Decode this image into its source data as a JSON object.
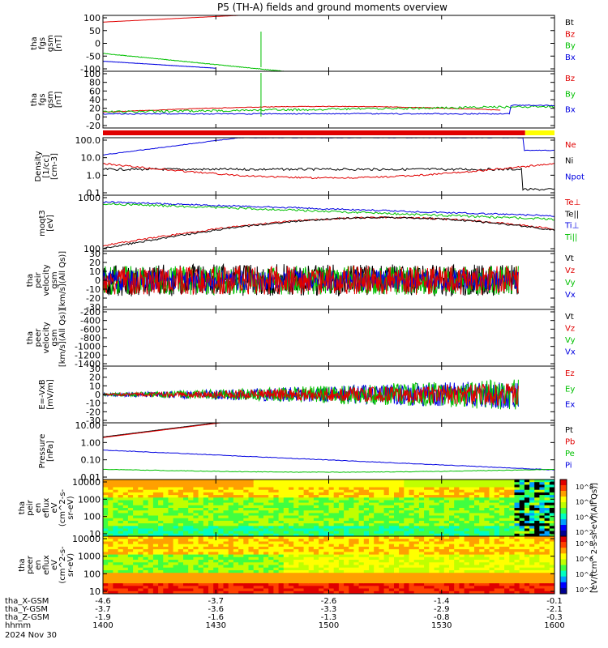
{
  "title": "P5 (TH-A) fields and ground moments overview",
  "chart_data": {
    "type": "line",
    "xlim": [
      1400,
      1600
    ],
    "x_ticks": [
      "1400",
      "1430",
      "1500",
      "1530",
      "1600"
    ],
    "footer": {
      "rows": [
        {
          "label": "tha_X-GSM",
          "values": [
            "-4.6",
            "-3.7",
            "-2.6",
            "-1.4",
            "-0.1"
          ]
        },
        {
          "label": "tha_Y-GSM",
          "values": [
            "-3.7",
            "-3.6",
            "-3.3",
            "-2.9",
            "-2.1"
          ]
        },
        {
          "label": "tha_Z-GSM",
          "values": [
            "-1.9",
            "-1.6",
            "-1.3",
            "-0.8",
            "-0.3"
          ]
        },
        {
          "label": "hhmm",
          "values": [
            "1400",
            "1430",
            "1500",
            "1530",
            "1600"
          ]
        }
      ],
      "date": "2024 Nov 30"
    },
    "panels": [
      {
        "id": "fgs_gsm",
        "ylabel": [
          "tha",
          "fgs",
          "gsm",
          "[nT]"
        ],
        "yticks": [
          "100",
          "50",
          "0",
          "-50",
          "-100"
        ],
        "legend": [
          {
            "name": "Bt",
            "color": "#000000"
          },
          {
            "name": "Bz",
            "color": "#e00000"
          },
          {
            "name": "By",
            "color": "#00c000"
          },
          {
            "name": "Bx",
            "color": "#0000e0"
          }
        ]
      },
      {
        "id": "fgs_dsl",
        "ylabel": [
          "tha",
          "fgs",
          "gsm",
          "[nT]"
        ],
        "yticks": [
          "100",
          "80",
          "60",
          "40",
          "20",
          "0",
          "-20"
        ],
        "legend": [
          {
            "name": "Bz",
            "color": "#e00000"
          },
          {
            "name": "By",
            "color": "#00c000"
          },
          {
            "name": "Bx",
            "color": "#0000e0"
          }
        ]
      },
      {
        "id": "density",
        "ylabel": [
          "Density",
          "[1/cc]",
          "[cm-3]"
        ],
        "yticks": [
          "100.0",
          "10.0",
          "1.0",
          "0.1"
        ],
        "legend": [
          {
            "name": "Ne",
            "color": "#e00000"
          },
          {
            "name": "Ni",
            "color": "#000000"
          },
          {
            "name": "Npot",
            "color": "#0000e0"
          }
        ]
      },
      {
        "id": "temperature",
        "ylabel": [
          "moqt3",
          "[eV]"
        ],
        "yticks": [
          "1000",
          "100"
        ],
        "legend": [
          {
            "name": "Te⊥",
            "color": "#e00000"
          },
          {
            "name": "Te||",
            "color": "#000000"
          },
          {
            "name": "Ti⊥",
            "color": "#0000e0"
          },
          {
            "name": "Ti||",
            "color": "#00c000"
          }
        ]
      },
      {
        "id": "peir_velocity",
        "ylabel": [
          "tha",
          "peir",
          "velocity",
          "gsm",
          "[km/s](All Qs)]"
        ],
        "yticks": [
          "30",
          "20",
          "10",
          "0",
          "-10",
          "-20",
          "-30"
        ],
        "legend": [
          {
            "name": "Vt",
            "color": "#000000"
          },
          {
            "name": "Vz",
            "color": "#e00000"
          },
          {
            "name": "Vy",
            "color": "#00c000"
          },
          {
            "name": "Vx",
            "color": "#0000e0"
          }
        ]
      },
      {
        "id": "peer_velocity",
        "ylabel": [
          "tha",
          "peer",
          "velocity",
          "gsm",
          "[km/s](All Qs)]"
        ],
        "yticks": [
          "-200",
          "-400",
          "-600",
          "-800",
          "-1000",
          "-1200",
          "-1400"
        ],
        "legend": [
          {
            "name": "Vt",
            "color": "#000000"
          },
          {
            "name": "Vz",
            "color": "#e00000"
          },
          {
            "name": "Vy",
            "color": "#00c000"
          },
          {
            "name": "Vx",
            "color": "#0000e0"
          }
        ]
      },
      {
        "id": "efield",
        "ylabel": [
          "E=-VxB",
          "[mV/m]"
        ],
        "yticks": [
          "30",
          "20",
          "10",
          "0",
          "-10",
          "-20",
          "-30"
        ],
        "legend": [
          {
            "name": "Ez",
            "color": "#e00000"
          },
          {
            "name": "Ey",
            "color": "#00c000"
          },
          {
            "name": "Ex",
            "color": "#0000e0"
          }
        ]
      },
      {
        "id": "pressure",
        "ylabel": [
          "Pressure",
          "[nPa]"
        ],
        "yticks": [
          "10.00",
          "1.00",
          "0.10",
          "0.01"
        ],
        "legend": [
          {
            "name": "Pt",
            "color": "#000000"
          },
          {
            "name": "Pb",
            "color": "#e00000"
          },
          {
            "name": "Pe",
            "color": "#00c000"
          },
          {
            "name": "Pi",
            "color": "#0000e0"
          }
        ]
      },
      {
        "id": "peir_en_eflux",
        "ylabel": [
          "tha",
          "peir",
          "en",
          "eflux",
          "eV",
          "(cm^2-s-",
          "sr-eV)"
        ],
        "yticks": [
          "10000",
          "1000",
          "100",
          "10"
        ],
        "colorbar": {
          "ticks": [
            "10^8",
            "10^6",
            "10^4",
            "10^2"
          ],
          "label": "[eV/(cm^2-s-sr-eV)(All Qs)]"
        }
      },
      {
        "id": "peer_en_eflux",
        "ylabel": [
          "tha",
          "peer",
          "en",
          "eflux",
          "eV",
          "(cm^2-s-",
          "sr-eV)"
        ],
        "yticks": [
          "10000",
          "1000",
          "100",
          "10"
        ],
        "colorbar": {
          "ticks": [
            "10^8",
            "10^6",
            "10^4",
            "10^2"
          ],
          "label": "[eV/(cm^2-s-sr-eV)]"
        }
      }
    ]
  }
}
